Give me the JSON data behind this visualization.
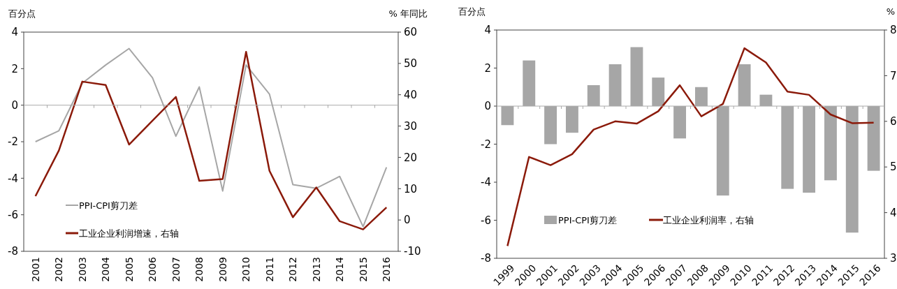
{
  "chart_data": [
    {
      "type": "line",
      "categories": [
        "2001",
        "2002",
        "2003",
        "2004",
        "2005",
        "2006",
        "2007",
        "2008",
        "2009",
        "2010",
        "2011",
        "2012",
        "2013",
        "2014",
        "2015",
        "2016"
      ],
      "ylabel": "百分点",
      "y2label": "% 年同比",
      "ylim": [
        -8,
        4
      ],
      "yticks": [
        -8,
        -6,
        -4,
        -2,
        0,
        2,
        4
      ],
      "y2lim": [
        -10,
        60
      ],
      "y2ticks": [
        -10,
        0,
        10,
        20,
        30,
        40,
        50,
        60
      ],
      "legend": "bottom left",
      "series": [
        {
          "name": "PPI-CPI剪刀差",
          "color": "#a6a6a6",
          "values": [
            -2.0,
            -1.4,
            1.2,
            2.2,
            3.1,
            1.5,
            -1.7,
            1.0,
            -4.7,
            2.2,
            0.6,
            -4.35,
            -4.55,
            -3.9,
            -6.65,
            -3.4
          ]
        },
        {
          "name": "工业企业利润增速，右轴",
          "axis": "y2",
          "color": "#8b1a0a",
          "values": [
            7.6,
            22.2,
            44.2,
            43.1,
            24.1,
            31.7,
            39.3,
            12.5,
            13.1,
            53.7,
            15.7,
            0.9,
            10.4,
            -0.4,
            -3.0,
            4.0
          ]
        }
      ]
    },
    {
      "type": "bar",
      "categories": [
        "1999",
        "2000",
        "2001",
        "2002",
        "2003",
        "2004",
        "2005",
        "2006",
        "2007",
        "2008",
        "2009",
        "2010",
        "2011",
        "2012",
        "2013",
        "2014",
        "2015",
        "2016"
      ],
      "ylabel": "百分点",
      "y2label": "%",
      "ylim": [
        -8,
        4
      ],
      "yticks": [
        -8,
        -6,
        -4,
        -2,
        0,
        2,
        4
      ],
      "y2lim": [
        3,
        8
      ],
      "y2ticks": [
        3,
        4,
        5,
        6,
        7,
        8
      ],
      "legend": "bottom",
      "series": [
        {
          "name": "PPI-CPI剪刀差",
          "color": "#a6a6a6",
          "values": [
            -1.0,
            2.4,
            -2.0,
            -1.4,
            1.1,
            2.2,
            3.1,
            1.5,
            -1.7,
            1.0,
            -4.7,
            2.2,
            0.6,
            -4.35,
            -4.55,
            -3.9,
            -6.65,
            -3.4
          ]
        },
        {
          "name": "工业企业利润率，右轴",
          "type": "line",
          "axis": "y2",
          "color": "#8b1a0a",
          "values": [
            3.27,
            5.22,
            5.04,
            5.28,
            5.82,
            6.0,
            5.95,
            6.22,
            6.79,
            6.11,
            6.38,
            7.6,
            7.29,
            6.65,
            6.58,
            6.15,
            5.96,
            5.97
          ]
        }
      ]
    }
  ]
}
